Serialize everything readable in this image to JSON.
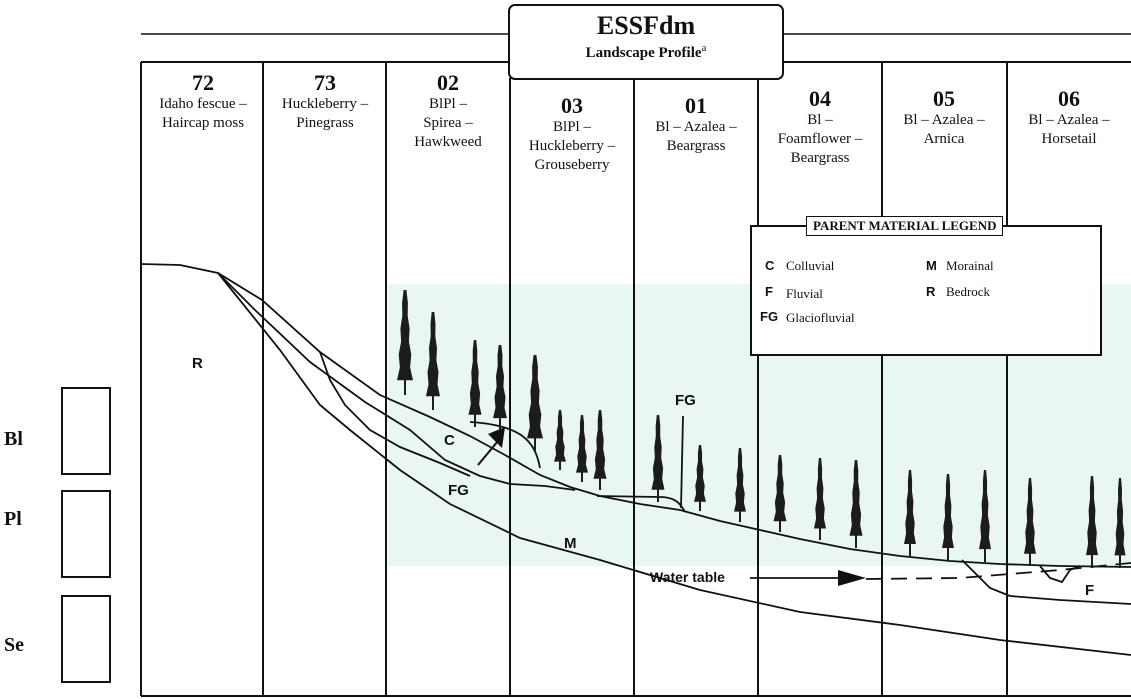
{
  "title": {
    "main": "ESSFdm",
    "subtitle": "Landscape Profile",
    "subtitle_sup": "a"
  },
  "columns": [
    {
      "number": "72",
      "name_lines": [
        "Idaho fescue –",
        "Haircap moss"
      ]
    },
    {
      "number": "73",
      "name_lines": [
        "Huckleberry –",
        "Pinegrass"
      ]
    },
    {
      "number": "02",
      "name_lines": [
        "BlPl –",
        "Spirea –",
        "Hawkweed"
      ]
    },
    {
      "number": "03",
      "name_lines": [
        "BlPl –",
        "Huckleberry –",
        "Grouseberry"
      ]
    },
    {
      "number": "01",
      "name_lines": [
        "Bl – Azalea –",
        "Beargrass"
      ]
    },
    {
      "number": "04",
      "name_lines": [
        "Bl –",
        "Foamflower –",
        "Beargrass"
      ]
    },
    {
      "number": "05",
      "name_lines": [
        "Bl – Azalea –",
        "Arnica"
      ]
    },
    {
      "number": "06",
      "name_lines": [
        "Bl – Azalea –",
        "Horsetail"
      ]
    }
  ],
  "legend": {
    "title": "PARENT MATERIAL LEGEND",
    "items": [
      {
        "code": "C",
        "label": "Colluvial"
      },
      {
        "code": "M",
        "label": "Morainal"
      },
      {
        "code": "F",
        "label": "Fluvial"
      },
      {
        "code": "R",
        "label": "Bedrock"
      },
      {
        "code": "FG",
        "label": "Glaciofluvial"
      }
    ]
  },
  "materials": {
    "r": "R",
    "c": "C",
    "fg_left": "FG",
    "fg_right": "FG",
    "m": "M",
    "f": "F"
  },
  "water_table_label": "Water table",
  "species": [
    "Bl",
    "Pl",
    "Se"
  ]
}
